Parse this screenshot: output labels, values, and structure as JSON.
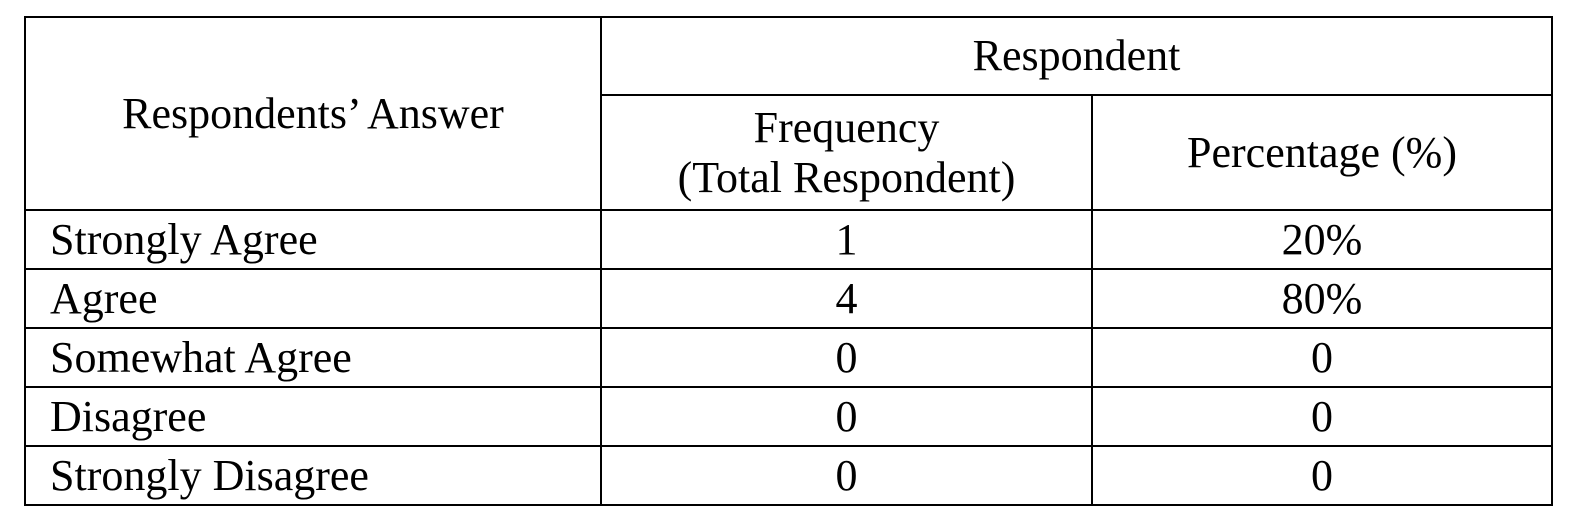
{
  "table": {
    "header": {
      "answer": "Respondents’ Answer",
      "group": "Respondent",
      "frequency_line1": "Frequency",
      "frequency_line2": "(Total Respondent)",
      "percentage": "Percentage (%)"
    },
    "rows": [
      {
        "answer": "Strongly Agree",
        "frequency": "1",
        "percentage": "20%"
      },
      {
        "answer": "Agree",
        "frequency": "4",
        "percentage": "80%"
      },
      {
        "answer": "Somewhat Agree",
        "frequency": "0",
        "percentage": "0"
      },
      {
        "answer": "Disagree",
        "frequency": "0",
        "percentage": "0"
      },
      {
        "answer": "Strongly Disagree",
        "frequency": "0",
        "percentage": "0"
      }
    ]
  }
}
